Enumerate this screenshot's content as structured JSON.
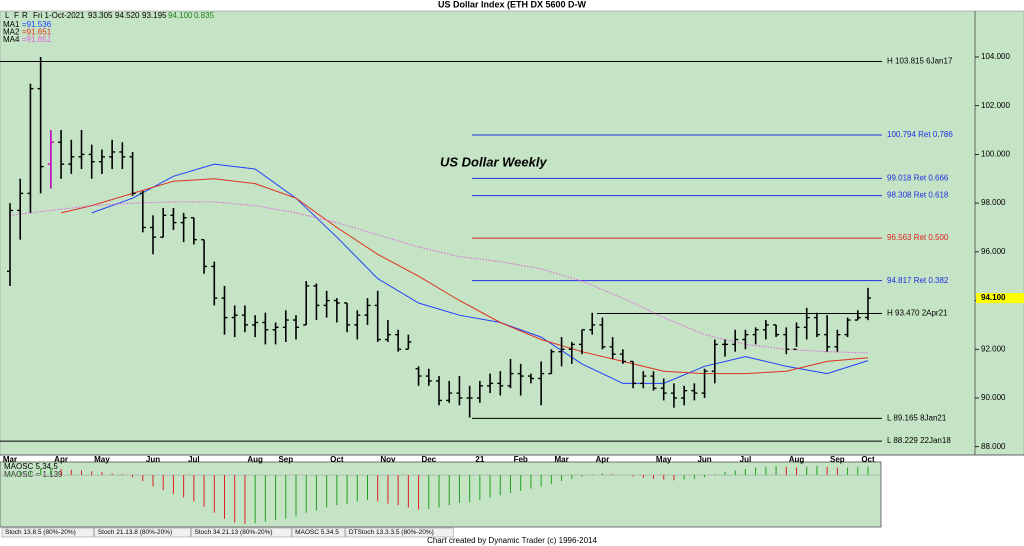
{
  "chart_data": {
    "type": "ohlc",
    "title": "US Dollar Index (ETH DX 5600 D-W",
    "annotation": "US Dollar Weekly",
    "color": "#000000",
    "categories": [
      "Mar",
      null,
      null,
      null,
      null,
      "Apr",
      null,
      null,
      null,
      "May",
      null,
      null,
      null,
      null,
      "Jun",
      null,
      null,
      null,
      "Jul",
      null,
      null,
      null,
      null,
      null,
      "Aug",
      null,
      null,
      "Sep",
      null,
      null,
      null,
      null,
      "Oct",
      null,
      null,
      null,
      null,
      "Nov",
      null,
      null,
      null,
      "Dec",
      null,
      null,
      null,
      null,
      "21",
      null,
      null,
      null,
      "Feb",
      null,
      null,
      null,
      "Mar",
      null,
      null,
      null,
      "Apr",
      null,
      null,
      null,
      null,
      null,
      "May",
      null,
      null,
      null,
      "Jun",
      null,
      null,
      null,
      "Jul",
      null,
      null,
      null,
      null,
      "Aug",
      null,
      null,
      null,
      "Sep",
      null,
      null,
      "Oct"
    ],
    "open": [
      95.2,
      97.7,
      98.4,
      102.7,
      99.6,
      100.5,
      99.6,
      99.9,
      100.0,
      99.7,
      99.9,
      100.1,
      99.9,
      98.4,
      97.0,
      96.6,
      97.5,
      97.2,
      97.4,
      96.5,
      95.4,
      94.1,
      93.3,
      93.4,
      93.0,
      93.1,
      92.8,
      92.9,
      93.2,
      93.0,
      94.6,
      93.8,
      94.0,
      93.9,
      93.0,
      93.4,
      93.8,
      92.4,
      92.6,
      92.0,
      91.2,
      90.9,
      90.7,
      89.9,
      90.2,
      90.0,
      90.0,
      90.5,
      90.6,
      90.5,
      91.0,
      90.9,
      90.8,
      91.0,
      91.9,
      92.0,
      92.2,
      92.8,
      93.0,
      92.1,
      91.8,
      91.5,
      90.6,
      90.9,
      90.4,
      90.2,
      90.0,
      90.3,
      90.2,
      91.1,
      92.2,
      92.2,
      92.4,
      92.6,
      92.8,
      93.0,
      92.6,
      92.0,
      92.9,
      93.3,
      92.6,
      92.1,
      92.6,
      93.2,
      93.305
    ],
    "high": [
      98.0,
      99.0,
      102.9,
      104.0,
      101.0,
      101.0,
      100.6,
      101.0,
      100.4,
      100.2,
      100.6,
      100.5,
      100.1,
      98.5,
      97.5,
      97.8,
      97.8,
      97.6,
      97.4,
      96.5,
      95.6,
      94.6,
      93.8,
      93.8,
      93.4,
      93.5,
      93.1,
      93.6,
      93.4,
      94.8,
      94.7,
      94.4,
      94.1,
      93.9,
      93.6,
      94.1,
      94.4,
      93.2,
      92.8,
      92.6,
      91.3,
      91.2,
      90.9,
      90.7,
      90.9,
      90.5,
      90.7,
      91.0,
      91.1,
      91.6,
      91.4,
      91.0,
      91.5,
      92.0,
      92.5,
      92.3,
      92.8,
      93.5,
      93.3,
      92.5,
      92.0,
      91.5,
      91.1,
      91.1,
      90.8,
      90.6,
      90.5,
      90.6,
      91.2,
      92.4,
      92.4,
      92.8,
      92.8,
      92.9,
      93.2,
      93.0,
      92.9,
      93.1,
      93.7,
      93.5,
      93.4,
      92.8,
      93.3,
      93.6,
      94.52
    ],
    "low": [
      94.6,
      96.5,
      97.6,
      98.4,
      98.6,
      99.0,
      99.2,
      99.4,
      99.0,
      99.2,
      99.4,
      99.4,
      98.3,
      96.8,
      95.9,
      96.6,
      96.9,
      96.4,
      96.3,
      95.1,
      93.8,
      92.6,
      92.5,
      92.7,
      92.5,
      92.2,
      92.2,
      92.3,
      92.4,
      93.0,
      93.2,
      93.3,
      93.1,
      92.7,
      92.4,
      93.0,
      92.3,
      92.3,
      91.9,
      92.0,
      90.5,
      90.5,
      89.7,
      89.8,
      89.7,
      89.2,
      89.8,
      90.2,
      90.1,
      90.4,
      90.1,
      90.6,
      89.7,
      91.0,
      91.3,
      91.4,
      91.8,
      92.6,
      92.0,
      91.6,
      91.4,
      90.4,
      90.4,
      90.3,
      89.9,
      89.6,
      89.7,
      89.9,
      90.0,
      90.6,
      91.7,
      91.9,
      92.0,
      92.2,
      92.4,
      92.5,
      91.8,
      92.1,
      92.4,
      92.5,
      91.9,
      91.9,
      92.5,
      93.2,
      93.195
    ],
    "close": [
      97.7,
      98.4,
      102.7,
      99.5,
      100.5,
      99.6,
      99.9,
      100.0,
      99.7,
      99.9,
      100.1,
      99.9,
      98.4,
      97.0,
      96.6,
      97.5,
      97.2,
      97.4,
      96.5,
      95.4,
      94.1,
      93.3,
      93.4,
      93.0,
      93.1,
      92.8,
      92.9,
      93.2,
      92.9,
      94.6,
      93.8,
      94.0,
      93.9,
      93.0,
      93.4,
      93.8,
      92.4,
      92.6,
      92.0,
      92.3,
      90.9,
      90.7,
      89.9,
      90.2,
      90.0,
      90.0,
      90.5,
      90.6,
      90.5,
      91.0,
      90.9,
      90.8,
      91.0,
      91.9,
      92.0,
      92.2,
      92.8,
      93.0,
      92.1,
      91.8,
      91.5,
      90.6,
      90.9,
      90.4,
      90.2,
      90.0,
      90.3,
      90.2,
      91.1,
      92.2,
      92.2,
      92.4,
      92.6,
      92.8,
      93.0,
      92.6,
      92.0,
      92.9,
      93.3,
      92.6,
      92.1,
      92.6,
      93.2,
      93.3,
      94.1
    ],
    "ylim": [
      87.7,
      105.6
    ],
    "yticks": [
      {
        "value": 88,
        "label": "88.000"
      },
      {
        "value": 90,
        "label": "90.000"
      },
      {
        "value": 92,
        "label": "92.000"
      },
      {
        "value": 94,
        "label": "94.000"
      },
      {
        "value": 96,
        "label": "96.000"
      },
      {
        "value": 98,
        "label": "98.000"
      },
      {
        "value": 100,
        "label": "100.000"
      },
      {
        "value": 102,
        "label": "102.000"
      },
      {
        "value": 104,
        "label": "104.000"
      }
    ],
    "series": [
      {
        "name": "MA1",
        "readout": "=91.536",
        "color": "#2040ff",
        "style": "solid",
        "x": [
          8,
          12,
          16,
          20,
          24,
          28,
          32,
          36,
          40,
          44,
          48,
          52,
          56,
          60,
          64,
          68,
          72,
          76,
          80,
          84
        ],
        "values": [
          97.6,
          98.2,
          99.1,
          99.6,
          99.4,
          98.2,
          96.6,
          94.9,
          93.9,
          93.4,
          93.1,
          92.5,
          91.4,
          90.6,
          90.6,
          91.3,
          91.7,
          91.3,
          91.0,
          91.536
        ]
      },
      {
        "name": "MA2",
        "readout": "=91.651",
        "color": "#e03020",
        "style": "solid",
        "x": [
          5,
          8,
          12,
          16,
          20,
          24,
          28,
          32,
          36,
          40,
          44,
          48,
          52,
          56,
          60,
          64,
          68,
          72,
          76,
          80,
          84
        ],
        "values": [
          97.6,
          97.9,
          98.4,
          98.9,
          99.0,
          98.8,
          98.2,
          97.0,
          95.9,
          95.0,
          94.0,
          93.1,
          92.4,
          91.9,
          91.5,
          91.1,
          91.0,
          91.0,
          91.1,
          91.5,
          91.651
        ]
      },
      {
        "name": "MA4",
        "readout": "=91.851",
        "color": "#e060e0",
        "style": "dotted",
        "x": [
          0,
          4,
          8,
          12,
          16,
          20,
          24,
          28,
          32,
          36,
          40,
          44,
          48,
          52,
          56,
          60,
          64,
          68,
          72,
          76,
          80,
          84
        ],
        "values": [
          97.5,
          97.7,
          97.9,
          98.0,
          98.05,
          98.05,
          97.9,
          97.6,
          97.2,
          96.7,
          96.2,
          95.8,
          95.6,
          95.3,
          94.8,
          94.1,
          93.3,
          92.6,
          92.2,
          92.0,
          91.9,
          91.851
        ]
      }
    ],
    "levels": [
      {
        "value": 103.815,
        "label": "H 103.815 6Jan17",
        "color": "#000000"
      },
      {
        "value": 100.794,
        "label": "100.794 Ret 0.786",
        "color": "#2030e0"
      },
      {
        "value": 99.018,
        "label": "99.018 Ret 0.666",
        "color": "#2030e0"
      },
      {
        "value": 98.308,
        "label": "98.308 Ret 0.618",
        "color": "#2030e0"
      },
      {
        "value": 96.563,
        "label": "96.563 Ret 0.500",
        "color": "#e02020"
      },
      {
        "value": 94.817,
        "label": "94.817 Ret 0.382",
        "color": "#2030e0"
      },
      {
        "value": 93.47,
        "label": "H 93.470 2Apr21",
        "color": "#000000"
      },
      {
        "value": 89.165,
        "label": "L 89.165 8Jan21",
        "color": "#000000"
      },
      {
        "value": 88.229,
        "label": "L 88.229 22Jan18",
        "color": "#000000"
      }
    ],
    "last_label": "94.100",
    "indicator": {
      "type": "histogram",
      "name": "MAOSC 5,34,5",
      "readout": "MAOSC = 1.139",
      "up_color": "#20a020",
      "down_color": "#e02020",
      "values": [
        0.3,
        0.5,
        0.6,
        0.8,
        0.9,
        0.8,
        0.7,
        0.6,
        0.5,
        0.4,
        0.2,
        0.1,
        -0.3,
        -0.8,
        -1.5,
        -2,
        -2.5,
        -3,
        -3.5,
        -4.2,
        -5,
        -5.8,
        -6.3,
        -6.5,
        -6.4,
        -6.2,
        -6,
        -5.8,
        -5.5,
        -5,
        -4.7,
        -4.3,
        -4,
        -3.8,
        -3.5,
        -3.3,
        -3.5,
        -3.8,
        -4,
        -4.3,
        -4.6,
        -4.5,
        -4.3,
        -4,
        -3.7,
        -3.6,
        -3.3,
        -3,
        -2.7,
        -2.4,
        -2.1,
        -1.8,
        -1.5,
        -1.2,
        -0.8,
        -0.5,
        -0.2,
        0.1,
        0.2,
        0.1,
        0,
        -0.2,
        -0.4,
        -0.5,
        -0.6,
        -0.7,
        -0.6,
        -0.5,
        -0.3,
        0.1,
        0.4,
        0.6,
        0.8,
        1,
        1.1,
        1.2,
        1.1,
        1.0,
        1.1,
        1.2,
        1.1,
        1.0,
        1.0,
        1.1,
        1.139
      ]
    }
  },
  "quote": {
    "toolbar": [
      "L",
      "F",
      "R"
    ],
    "date": "Fri 1-Oct-2021",
    "open": "93.305",
    "high": "94.520",
    "low": "93.195",
    "close": "94.100",
    "change": "0.835"
  },
  "tabs": [
    "Stoch 13.8.5 (80%-20%)",
    "Stoch 21.13.8 (80%-20%)",
    "Stoch 34.21.13 (80%-20%)",
    "MAOSC 5.34.5",
    "DTStoch 13.3.3.5 (80%-20%)"
  ],
  "footer": "Chart created by Dynamic Trader  (c)  1996-2014"
}
